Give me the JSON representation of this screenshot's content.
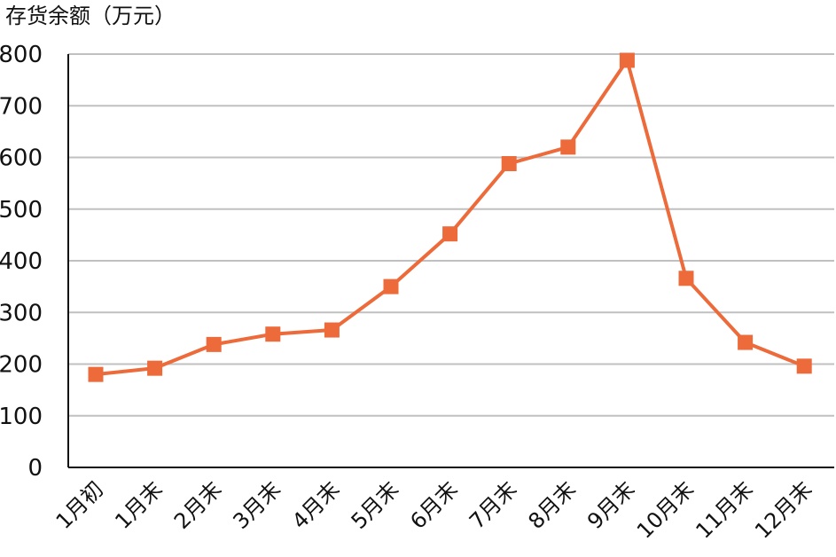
{
  "chart_data": {
    "type": "line",
    "title": "",
    "xlabel": "",
    "ylabel": "存货余额（万元）",
    "ylim": [
      0,
      800
    ],
    "yticks": [
      0,
      100,
      200,
      300,
      400,
      500,
      600,
      700,
      800
    ],
    "grid": true,
    "legend": "none",
    "categories": [
      "1月初",
      "1月末",
      "2月末",
      "3月末",
      "4月末",
      "5月末",
      "6月末",
      "7月末",
      "8月末",
      "9月末",
      "10月末",
      "11月末",
      "12月末"
    ],
    "series": [
      {
        "values": [
          180,
          192,
          238,
          258,
          266,
          350,
          452,
          588,
          620,
          788,
          366,
          242,
          196
        ],
        "color": "#ED6A3A",
        "marker": "square"
      }
    ]
  },
  "colors": {
    "line": "#ED6A3A",
    "grid": "#C0C0C0",
    "axis": "#111111"
  }
}
